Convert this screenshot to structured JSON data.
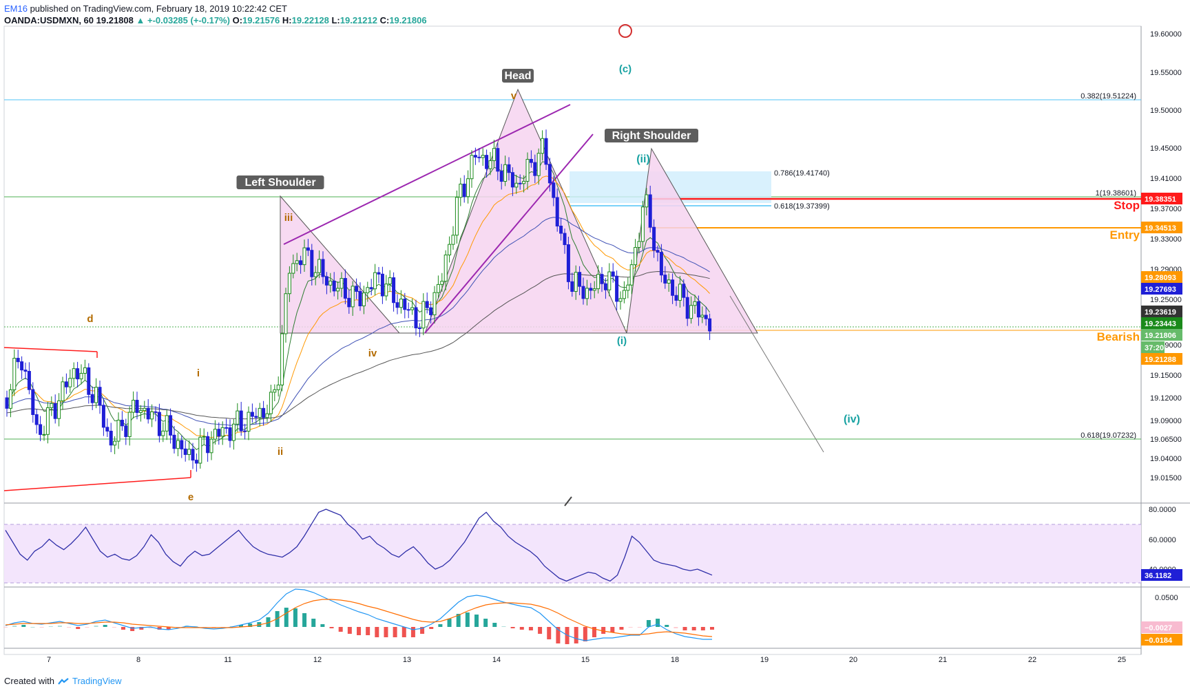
{
  "header": {
    "publisher": "EM16",
    "published_on": " published on TradingView.com, February 18, 2019 10:22:42 CET",
    "symbol": "OANDA:USDMXN, 60",
    "last": "19.21808",
    "change": "▲ +-0.03285 (+-0.17%)",
    "open_label": "O:",
    "open": "19.21576",
    "high_label": "H:",
    "high": "19.22128",
    "low_label": "L:",
    "low": "19.21212",
    "close_label": "C:",
    "close": "19.21806"
  },
  "footer": {
    "created_with": "Created with",
    "brand": "TradingView"
  },
  "colors": {
    "bull": "#1a8a1a",
    "bear": "#1f1fd6",
    "pattern_fill": "#f6d3f0",
    "trendline": "#9c27b0",
    "stop": "#ff1a1a",
    "entry": "#ff9800",
    "fib_blue": "#4fc3f7",
    "fib_green": "#4caf50",
    "rsi_band": "#f3e5fc"
  },
  "chart_data": [
    {
      "type": "candlestick",
      "symbol": "OANDA:USDMXN, 60",
      "x_tick_labels": [
        "7",
        "8",
        "11",
        "12",
        "13",
        "14",
        "15",
        "18",
        "19",
        "20",
        "21",
        "22",
        "25"
      ],
      "y_tick_labels": [
        "19.60000",
        "19.55000",
        "19.50000",
        "19.45000",
        "19.41000",
        "19.37000",
        "19.33000",
        "19.29000",
        "19.25000",
        "19.21000",
        "19.19000",
        "19.15000",
        "19.12000",
        "19.09000",
        "19.06500",
        "19.04000",
        "19.01500"
      ],
      "ylim": [
        18.99,
        19.61
      ],
      "price_tags": [
        {
          "value": "19.38351",
          "color": "#ff1a1a"
        },
        {
          "value": "19.34513",
          "color": "#ff9800"
        },
        {
          "value": "19.28093",
          "color": "#ff9800"
        },
        {
          "value": "19.27693",
          "color": "#1f1fd6"
        },
        {
          "value": "19.23619",
          "color": "#333333"
        },
        {
          "value": "19.23443",
          "color": "#1a8a1a"
        },
        {
          "value": "19.21806",
          "color": "#66bb6a"
        },
        {
          "value": "37:20",
          "color": "#66bb6a"
        },
        {
          "value": "19.21288",
          "color": "#ff9800"
        }
      ],
      "fib_levels": [
        {
          "label": "0.382(19.51224)",
          "value": 19.51224
        },
        {
          "label": "1(19.38601)",
          "value": 19.38601
        },
        {
          "label": "0.618(19.07232)",
          "value": 19.07232
        },
        {
          "label": "0.786(19.41740)",
          "value": 19.4174
        },
        {
          "label": "0.618(19.37399)",
          "value": 19.37399
        }
      ],
      "pattern_labels": [
        "Left Shoulder",
        "Head",
        "Right Shoulder"
      ],
      "trade_labels": {
        "stop": "Stop",
        "entry": "Entry",
        "bearish": "Bearish"
      },
      "wave_labels": [
        "(c)",
        "(ii)",
        "(i)",
        "(iv)",
        "iii",
        "iv",
        "i",
        "ii",
        "v",
        "d",
        "e"
      ]
    },
    {
      "type": "line",
      "name": "RSI",
      "y_tick_labels": [
        "80.0000",
        "60.0000",
        "40.0000"
      ],
      "last_value": "36.1182",
      "values": [
        66,
        58,
        50,
        46,
        52,
        55,
        60,
        56,
        53,
        57,
        62,
        68,
        60,
        52,
        48,
        50,
        47,
        46,
        49,
        55,
        63,
        58,
        50,
        45,
        42,
        48,
        52,
        49,
        50,
        54,
        58,
        62,
        66,
        60,
        55,
        52,
        50,
        49,
        48,
        51,
        55,
        62,
        70,
        78,
        80,
        78,
        76,
        70,
        66,
        60,
        62,
        57,
        54,
        50,
        48,
        52,
        55,
        50,
        44,
        40,
        42,
        46,
        52,
        58,
        66,
        74,
        78,
        72,
        68,
        62,
        58,
        55,
        52,
        48,
        42,
        38,
        34,
        32,
        34,
        36,
        38,
        37,
        34,
        32,
        36,
        48,
        62,
        58,
        52,
        46,
        44,
        43,
        42,
        40,
        39,
        40,
        38,
        36
      ]
    },
    {
      "type": "bar",
      "name": "MACD",
      "y_tick_labels": [
        "0.0500"
      ],
      "tags": [
        {
          "value": "−0.0027",
          "color": "#f8bbd0"
        },
        {
          "value": "−0.0184",
          "color": "#ff9800"
        }
      ],
      "macd": [
        0.002,
        0.006,
        0.008,
        0.005,
        0.004,
        0.006,
        0.008,
        0.005,
        0.002,
        0.004,
        0.008,
        0.01,
        0.006,
        0.002,
        -0.002,
        -0.001,
        0.0,
        -0.003,
        -0.004,
        -0.002,
        0.001,
        0.0,
        -0.002,
        -0.003,
        -0.002,
        0.0,
        0.003,
        0.006,
        0.01,
        0.02,
        0.035,
        0.048,
        0.055,
        0.054,
        0.05,
        0.044,
        0.038,
        0.032,
        0.027,
        0.022,
        0.018,
        0.012,
        0.008,
        0.004,
        0.0,
        -0.004,
        -0.002,
        0.004,
        0.012,
        0.024,
        0.036,
        0.044,
        0.046,
        0.044,
        0.04,
        0.036,
        0.033,
        0.03,
        0.028,
        0.02,
        0.008,
        -0.004,
        -0.012,
        -0.017,
        -0.02,
        -0.018,
        -0.016,
        -0.016,
        -0.014,
        -0.012,
        -0.012,
        0.0,
        0.004,
        -0.004,
        -0.01,
        -0.014,
        -0.016,
        -0.018,
        -0.018
      ],
      "signal": [
        0.003,
        0.004,
        0.005,
        0.005,
        0.005,
        0.005,
        0.006,
        0.006,
        0.005,
        0.005,
        0.006,
        0.007,
        0.007,
        0.006,
        0.004,
        0.003,
        0.002,
        0.001,
        0.0,
        -0.001,
        -0.001,
        -0.001,
        -0.001,
        -0.001,
        -0.001,
        -0.001,
        0.0,
        0.001,
        0.003,
        0.006,
        0.012,
        0.02,
        0.028,
        0.034,
        0.038,
        0.04,
        0.04,
        0.039,
        0.037,
        0.034,
        0.03,
        0.027,
        0.023,
        0.019,
        0.015,
        0.011,
        0.008,
        0.007,
        0.008,
        0.012,
        0.017,
        0.023,
        0.028,
        0.032,
        0.034,
        0.035,
        0.035,
        0.034,
        0.033,
        0.03,
        0.026,
        0.02,
        0.013,
        0.007,
        0.001,
        -0.003,
        -0.006,
        -0.008,
        -0.01,
        -0.011,
        -0.011,
        -0.01,
        -0.008,
        -0.007,
        -0.008,
        -0.009,
        -0.011,
        -0.013,
        -0.014
      ]
    }
  ]
}
